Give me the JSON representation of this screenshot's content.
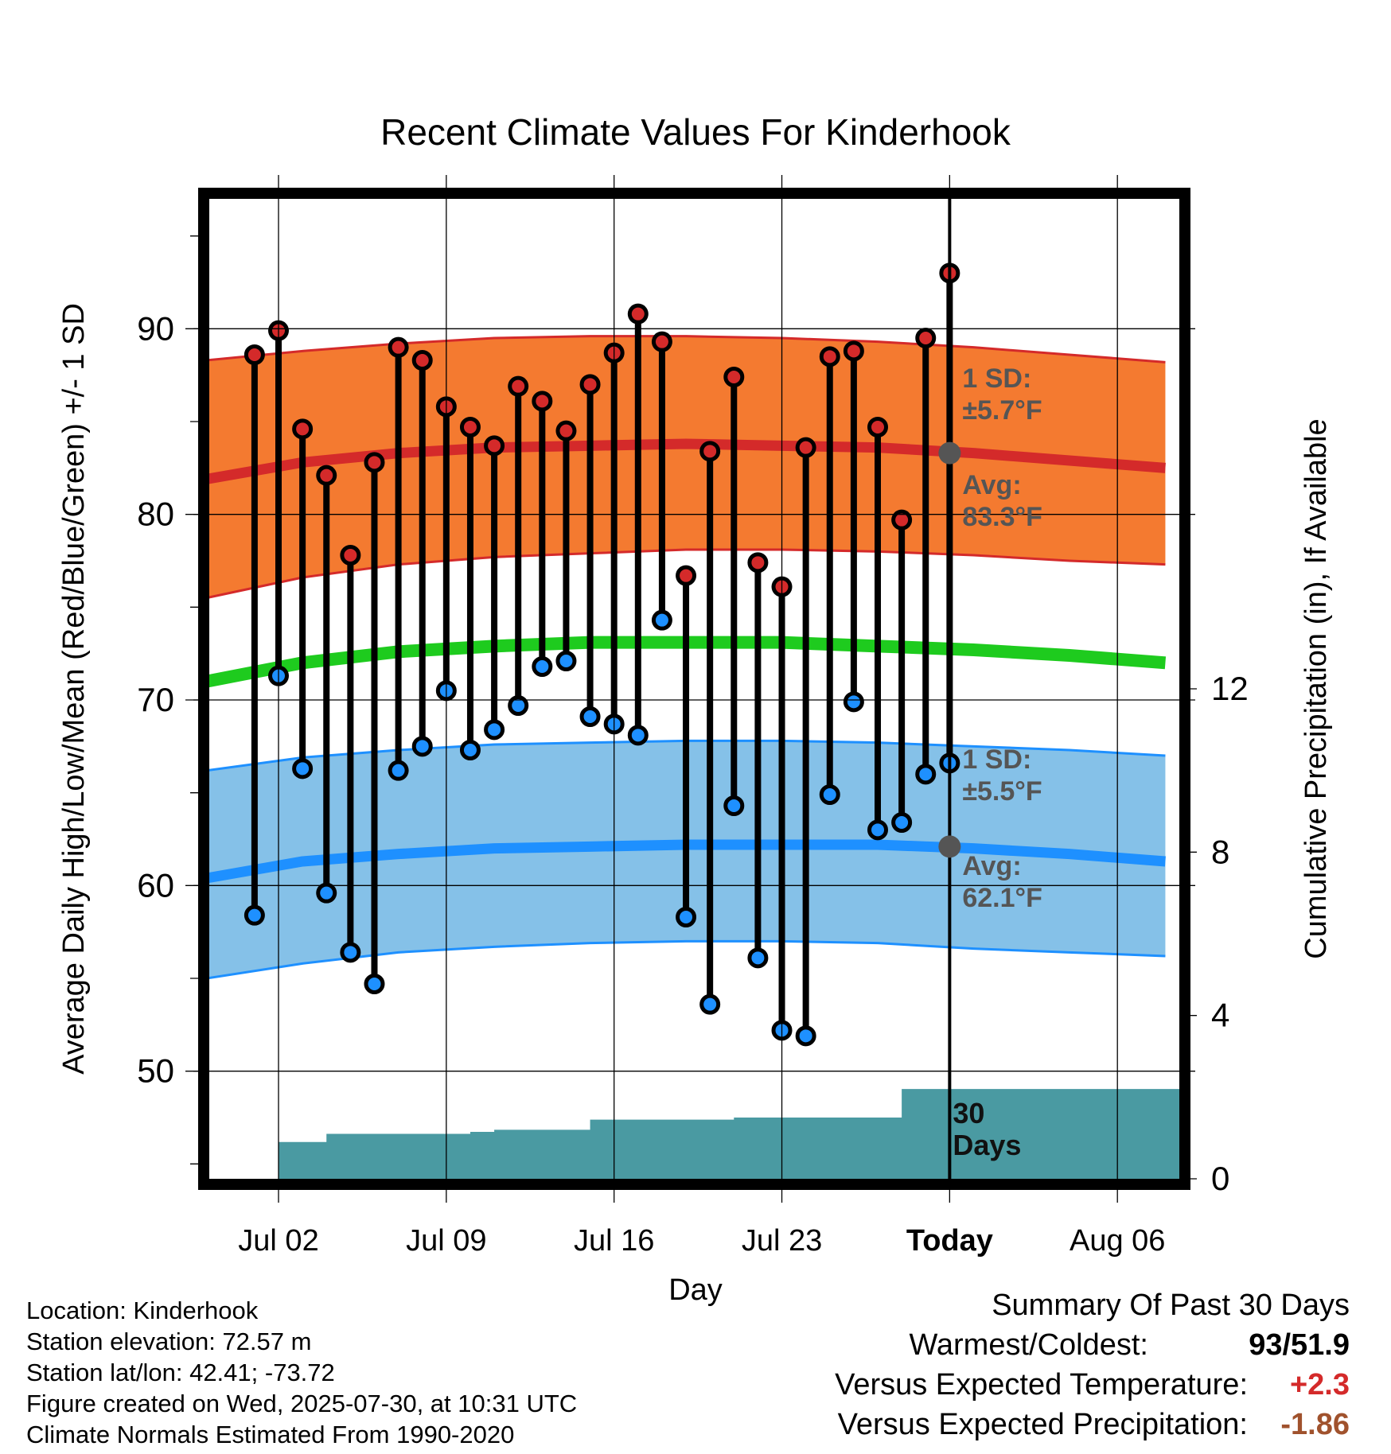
{
  "chart_data": {
    "type": "line",
    "title": "Recent Climate Values For Kinderhook",
    "xlabel": "Day",
    "ylabel": "Average Daily High/Low/Mean (Red/Blue/Green) +/- 1 SD",
    "y2label": "Cumulative Precipitation (in), If Available",
    "ylim": [
      44.2,
      97
    ],
    "y2lim": [
      0,
      24
    ],
    "x_ticks": [
      "Jul 02",
      "Jul 09",
      "Jul 16",
      "Jul 23",
      "Today",
      "Aug 06"
    ],
    "x_tick_dates": [
      "2025-07-02",
      "2025-07-09",
      "2025-07-16",
      "2025-07-23",
      "2025-07-30",
      "2025-08-06"
    ],
    "x_range": [
      "2025-06-29",
      "2025-08-08"
    ],
    "y_ticks": [
      50,
      60,
      70,
      80,
      90
    ],
    "y2_ticks": [
      0,
      4,
      8,
      12
    ],
    "today": "2025-07-30",
    "grid": true,
    "daily": [
      {
        "date": "2025-07-01",
        "high": 88.6,
        "low": 58.4
      },
      {
        "date": "2025-07-02",
        "high": 89.9,
        "low": 71.3
      },
      {
        "date": "2025-07-03",
        "high": 84.6,
        "low": 66.3
      },
      {
        "date": "2025-07-04",
        "high": 82.1,
        "low": 59.6
      },
      {
        "date": "2025-07-05",
        "high": 77.8,
        "low": 56.4
      },
      {
        "date": "2025-07-06",
        "high": 82.8,
        "low": 54.7
      },
      {
        "date": "2025-07-07",
        "high": 89.0,
        "low": 66.2
      },
      {
        "date": "2025-07-08",
        "high": 88.3,
        "low": 67.5
      },
      {
        "date": "2025-07-09",
        "high": 85.8,
        "low": 70.5
      },
      {
        "date": "2025-07-10",
        "high": 84.7,
        "low": 67.3
      },
      {
        "date": "2025-07-11",
        "high": 83.7,
        "low": 68.4
      },
      {
        "date": "2025-07-12",
        "high": 86.9,
        "low": 69.7
      },
      {
        "date": "2025-07-13",
        "high": 86.1,
        "low": 71.8
      },
      {
        "date": "2025-07-14",
        "high": 84.5,
        "low": 72.1
      },
      {
        "date": "2025-07-15",
        "high": 87.0,
        "low": 69.1
      },
      {
        "date": "2025-07-16",
        "high": 88.7,
        "low": 68.7
      },
      {
        "date": "2025-07-17",
        "high": 90.8,
        "low": 68.1
      },
      {
        "date": "2025-07-18",
        "high": 89.3,
        "low": 74.3
      },
      {
        "date": "2025-07-19",
        "high": 76.7,
        "low": 58.3
      },
      {
        "date": "2025-07-20",
        "high": 83.4,
        "low": 53.6
      },
      {
        "date": "2025-07-21",
        "high": 87.4,
        "low": 64.3
      },
      {
        "date": "2025-07-22",
        "high": 77.4,
        "low": 56.1
      },
      {
        "date": "2025-07-23",
        "high": 76.1,
        "low": 52.2
      },
      {
        "date": "2025-07-24",
        "high": 83.6,
        "low": 51.9
      },
      {
        "date": "2025-07-25",
        "high": 88.5,
        "low": 64.9
      },
      {
        "date": "2025-07-26",
        "high": 88.8,
        "low": 69.9
      },
      {
        "date": "2025-07-27",
        "high": 84.7,
        "low": 63.0
      },
      {
        "date": "2025-07-28",
        "high": 79.7,
        "low": 63.4
      },
      {
        "date": "2025-07-29",
        "high": 89.5,
        "low": 66.0
      },
      {
        "date": "2025-07-30",
        "high": 93.0,
        "low": 66.6
      }
    ],
    "normals": {
      "dates": [
        "2025-06-29",
        "2025-07-03",
        "2025-07-07",
        "2025-07-11",
        "2025-07-15",
        "2025-07-19",
        "2025-07-23",
        "2025-07-27",
        "2025-07-31",
        "2025-08-04",
        "2025-08-08"
      ],
      "high_avg": [
        81.9,
        82.8,
        83.3,
        83.6,
        83.7,
        83.8,
        83.7,
        83.6,
        83.3,
        82.9,
        82.5
      ],
      "high_upper": [
        88.3,
        88.8,
        89.2,
        89.5,
        89.6,
        89.6,
        89.5,
        89.3,
        89.0,
        88.6,
        88.2
      ],
      "high_lower": [
        75.5,
        76.6,
        77.3,
        77.7,
        77.9,
        78.1,
        78.1,
        78.0,
        77.8,
        77.5,
        77.3
      ],
      "mean": [
        71.0,
        72.0,
        72.6,
        72.9,
        73.1,
        73.1,
        73.1,
        72.9,
        72.7,
        72.4,
        72.0
      ],
      "low_avg": [
        60.4,
        61.3,
        61.7,
        62.0,
        62.1,
        62.2,
        62.2,
        62.2,
        62.0,
        61.7,
        61.3
      ],
      "low_upper": [
        66.2,
        66.9,
        67.3,
        67.6,
        67.7,
        67.8,
        67.8,
        67.7,
        67.5,
        67.3,
        67.0
      ],
      "low_lower": [
        55.0,
        55.8,
        56.4,
        56.7,
        56.9,
        57.0,
        57.0,
        56.9,
        56.6,
        56.4,
        56.2
      ]
    },
    "precip_cumulative": [
      {
        "date": "2025-07-01",
        "value": 0.0
      },
      {
        "date": "2025-07-02",
        "value": 0.9
      },
      {
        "date": "2025-07-03",
        "value": 0.9
      },
      {
        "date": "2025-07-04",
        "value": 1.1
      },
      {
        "date": "2025-07-05",
        "value": 1.1
      },
      {
        "date": "2025-07-06",
        "value": 1.1
      },
      {
        "date": "2025-07-07",
        "value": 1.1
      },
      {
        "date": "2025-07-08",
        "value": 1.1
      },
      {
        "date": "2025-07-09",
        "value": 1.1
      },
      {
        "date": "2025-07-10",
        "value": 1.15
      },
      {
        "date": "2025-07-11",
        "value": 1.2
      },
      {
        "date": "2025-07-12",
        "value": 1.2
      },
      {
        "date": "2025-07-13",
        "value": 1.2
      },
      {
        "date": "2025-07-14",
        "value": 1.2
      },
      {
        "date": "2025-07-15",
        "value": 1.45
      },
      {
        "date": "2025-07-16",
        "value": 1.45
      },
      {
        "date": "2025-07-17",
        "value": 1.45
      },
      {
        "date": "2025-07-18",
        "value": 1.45
      },
      {
        "date": "2025-07-19",
        "value": 1.45
      },
      {
        "date": "2025-07-20",
        "value": 1.45
      },
      {
        "date": "2025-07-21",
        "value": 1.5
      },
      {
        "date": "2025-07-22",
        "value": 1.5
      },
      {
        "date": "2025-07-23",
        "value": 1.5
      },
      {
        "date": "2025-07-24",
        "value": 1.5
      },
      {
        "date": "2025-07-25",
        "value": 1.5
      },
      {
        "date": "2025-07-26",
        "value": 1.5
      },
      {
        "date": "2025-07-27",
        "value": 1.5
      },
      {
        "date": "2025-07-28",
        "value": 2.2
      },
      {
        "date": "2025-07-29",
        "value": 2.2
      },
      {
        "date": "2025-07-30",
        "value": 2.2
      },
      {
        "date": "2025-08-08",
        "value": 2.2
      }
    ],
    "annotations": {
      "high_sd_line1": "1 SD:",
      "high_sd_line2": "±5.7°F",
      "high_avg_line1": "Avg:",
      "high_avg_line2": "83.3°F",
      "high_avg_value": 83.3,
      "low_sd_line1": "1 SD:",
      "low_sd_line2": "±5.5°F",
      "low_avg_line1": "Avg:",
      "low_avg_line2": "62.1°F",
      "low_avg_value": 62.1,
      "days_line1": "30",
      "days_line2": "Days"
    },
    "colors": {
      "high_band": "#f47a30",
      "high_line": "#d42a2a",
      "low_band": "#85c1e8",
      "low_line": "#1e90ff",
      "mean_line": "#1ecb1e",
      "precip": "#4a9aa2",
      "high_dot": "#d42a2a",
      "low_dot": "#1e90ff",
      "annotation": "#555555"
    }
  },
  "info": {
    "location": "Location: Kinderhook",
    "elevation": "Station elevation: 72.57 m",
    "latlon": "Station lat/lon: 42.41; -73.72",
    "created": "Figure created on Wed, 2025-07-30, at 10:31 UTC",
    "normals": "Climate Normals Estimated From 1990-2020"
  },
  "summary": {
    "title": "Summary Of Past 30 Days",
    "warm_label": "Warmest/Coldest:",
    "warm_value": "93/51.9",
    "temp_label": "Versus Expected Temperature:",
    "temp_value": "+2.3",
    "temp_color": "#d42a2a",
    "precip_label": "Versus Expected Precipitation:",
    "precip_value": "-1.86",
    "precip_color": "#a0522d"
  }
}
